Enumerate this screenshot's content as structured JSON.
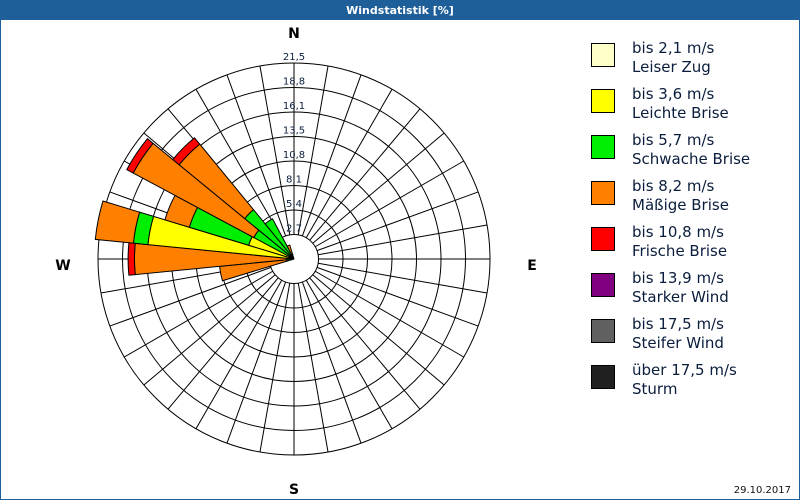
{
  "title": "Windstatistik [%]",
  "date": "29.10.2017",
  "chart_data": {
    "type": "polar-stacked-bar",
    "title": "Windstatistik [%]",
    "compass": {
      "N": "N",
      "E": "E",
      "S": "S",
      "W": "W"
    },
    "rmax": 21.5,
    "ring_labels": [
      "2,7",
      "5,4",
      "8,1",
      "10,8",
      "13,5",
      "16,1",
      "18,8",
      "21,5"
    ],
    "classes": [
      {
        "range": "bis 2,1 m/s",
        "name": "Leiser Zug",
        "color": "#ffffc8"
      },
      {
        "range": "bis 3,6 m/s",
        "name": "Leichte Brise",
        "color": "#ffff00"
      },
      {
        "range": "bis 5,7 m/s",
        "name": "Schwache Brise",
        "color": "#00ee00"
      },
      {
        "range": "bis 8,2 m/s",
        "name": "Mäßige Brise",
        "color": "#ff8000"
      },
      {
        "range": "bis 10,8 m/s",
        "name": "Frische Brise",
        "color": "#ff0000"
      },
      {
        "range": "bis 13,9 m/s",
        "name": "Starker Wind",
        "color": "#800080"
      },
      {
        "range": "bis 17,5 m/s",
        "name": "Steifer Wind",
        "color": "#606060"
      },
      {
        "range": "über 17,5 m/s",
        "name": "Sturm",
        "color": "#202020"
      }
    ],
    "sector_width_deg": 11.25,
    "sectors": [
      {
        "dir": 258.75,
        "values": [
          0,
          0.3,
          0.5,
          7.4,
          0,
          0,
          0,
          0
        ]
      },
      {
        "dir": 270,
        "values": [
          0,
          0.3,
          0.5,
          16.7,
          0.7,
          0,
          0,
          0
        ]
      },
      {
        "dir": 281.25,
        "values": [
          0,
          16.1,
          1.6,
          4.2,
          0,
          0,
          0,
          0
        ]
      },
      {
        "dir": 292.5,
        "values": [
          0,
          5.2,
          6.8,
          2.8,
          0,
          0,
          0,
          0
        ]
      },
      {
        "dir": 303.75,
        "values": [
          0,
          0.5,
          4.5,
          15.0,
          0.8,
          0,
          0,
          0
        ]
      },
      {
        "dir": 315,
        "values": [
          0,
          0.3,
          6.7,
          9.3,
          0.9,
          0,
          0,
          0
        ]
      },
      {
        "dir": 326.25,
        "values": [
          0,
          0.2,
          4.8,
          0,
          0,
          0,
          0,
          0
        ]
      },
      {
        "dir": 337.5,
        "values": [
          0,
          0,
          0.5,
          1.1,
          0,
          0,
          0,
          0
        ]
      }
    ]
  }
}
